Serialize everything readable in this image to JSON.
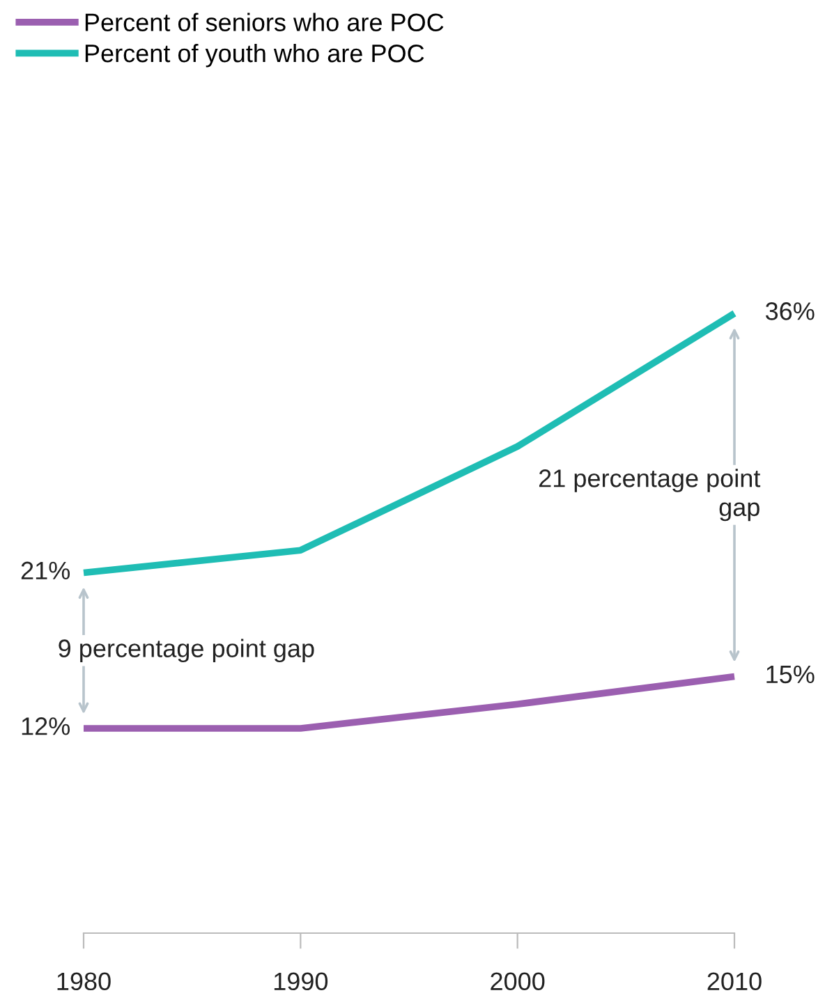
{
  "chart_data": {
    "type": "line",
    "x": [
      1980,
      1990,
      2000,
      2010
    ],
    "series": [
      {
        "name": "Percent of seniors who are POC",
        "color": "#9b5fb0",
        "values": [
          12,
          12,
          13.4,
          15
        ],
        "value_labels": [
          "12%",
          null,
          null,
          "15%"
        ]
      },
      {
        "name": "Percent of youth who are POC",
        "color": "#1fbdb4",
        "values": [
          21,
          22.3,
          28.3,
          36
        ],
        "value_labels": [
          "21%",
          null,
          null,
          "36%"
        ]
      }
    ],
    "xlim": [
      1980,
      2010
    ],
    "xticks": [
      1980,
      1990,
      2000,
      2010
    ],
    "tick_labels": "x",
    "annotations": [
      "9 percentage point gap",
      "21 percentage point\ngap"
    ],
    "legend": "top left",
    "grid": false,
    "marker": "none",
    "line_style": "solid"
  }
}
